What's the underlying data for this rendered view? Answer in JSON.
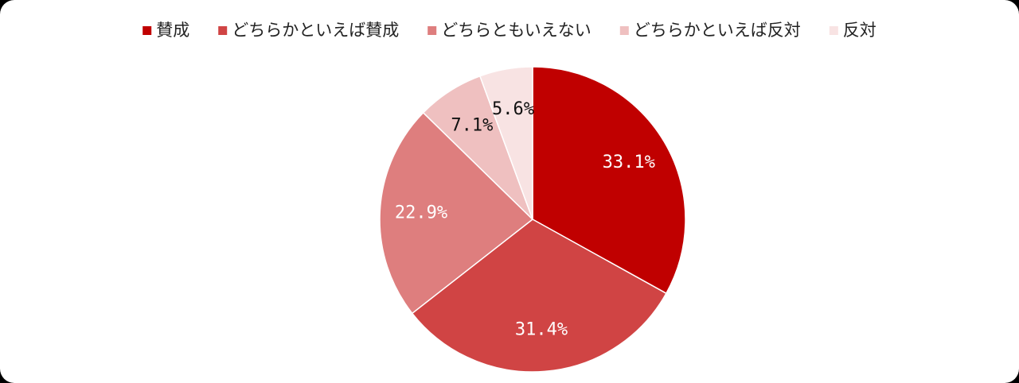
{
  "chart_data": {
    "type": "pie",
    "categories": [
      "賛成",
      "どちらかといえば賛成",
      "どちらともいえない",
      "どちらかといえば反対",
      "反対"
    ],
    "values": [
      33.1,
      31.4,
      22.9,
      7.1,
      5.6
    ],
    "value_labels": [
      "33.1%",
      "31.4%",
      "22.9%",
      "7.1%",
      "5.6%"
    ],
    "colors": [
      "#c00000",
      "#d04444",
      "#de7e7e",
      "#efc0c0",
      "#f8e3e3"
    ],
    "label_colors": [
      "#ffffff",
      "#ffffff",
      "#ffffff",
      "#111111",
      "#111111"
    ],
    "legend": "top"
  }
}
